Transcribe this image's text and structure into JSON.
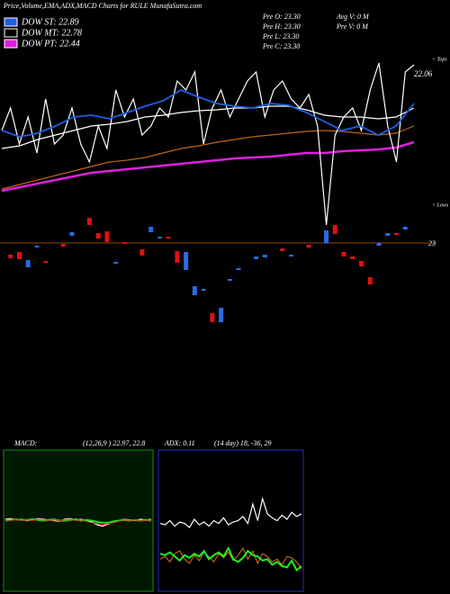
{
  "chart_data": [
    {
      "type": "line",
      "title": "Price,Volume,EMA,ADX,MACD Charts for RULE MunafaSutra.com",
      "xlim": [
        0,
        47
      ],
      "ylim": [
        20.0,
        23.6
      ],
      "series": [
        {
          "color": "#ffffff",
          "values": [
            22.15,
            22.4,
            22.0,
            22.3,
            21.9,
            22.5,
            22.0,
            22.1,
            22.4,
            22.0,
            21.8,
            22.2,
            21.95,
            22.6,
            22.3,
            22.5,
            22.1,
            22.2,
            22.4,
            22.3,
            22.7,
            22.6,
            22.8,
            22.0,
            22.4,
            22.6,
            22.3,
            22.5,
            22.7,
            22.8,
            22.3,
            22.6,
            22.7,
            22.5,
            22.4,
            22.55,
            22.2,
            21.1,
            22.1,
            22.3,
            22.4,
            22.15,
            22.6,
            22.9,
            22.2,
            21.8,
            22.8,
            22.88
          ]
        },
        {
          "name": "DOW ST: 22.89",
          "color": "#1e5fe0",
          "values": [
            22.15,
            22.08,
            22.12,
            22.2,
            22.3,
            22.32,
            22.28,
            22.35,
            22.42,
            22.48,
            22.6,
            22.52,
            22.45,
            22.42,
            22.4,
            22.45,
            22.43,
            22.35,
            22.25,
            22.15,
            22.2,
            22.1,
            22.2,
            22.45
          ]
        },
        {
          "name": "DOW MT: 22.78",
          "color": "#ffffff",
          "values": [
            21.95,
            21.98,
            22.05,
            22.1,
            22.15,
            22.2,
            22.22,
            22.25,
            22.3,
            22.32,
            22.35,
            22.37,
            22.38,
            22.4,
            22.4,
            22.42,
            22.42,
            22.38,
            22.32,
            22.3,
            22.3,
            22.28,
            22.3,
            22.4
          ]
        },
        {
          "color": "#b8651e",
          "values": [
            21.5,
            21.55,
            21.6,
            21.65,
            21.7,
            21.75,
            21.8,
            21.82,
            21.85,
            21.9,
            21.95,
            21.98,
            22.02,
            22.05,
            22.08,
            22.1,
            22.12,
            22.14,
            22.15,
            22.14,
            22.12,
            22.1,
            22.12,
            22.2
          ]
        },
        {
          "name": "DOW PT: 22.44",
          "color": "#e01ee0",
          "values": [
            21.48,
            21.52,
            21.56,
            21.6,
            21.64,
            21.68,
            21.7,
            21.72,
            21.74,
            21.76,
            21.78,
            21.8,
            21.82,
            21.84,
            21.85,
            21.86,
            21.88,
            21.9,
            21.9,
            21.92,
            21.93,
            21.94,
            21.96,
            22.02
          ]
        }
      ],
      "candles": {
        "x": [
          1,
          2,
          3,
          4,
          5,
          7,
          8,
          10,
          11,
          12,
          13,
          14,
          16,
          17,
          18,
          19,
          20,
          21,
          22,
          23,
          24,
          25,
          26,
          27,
          29,
          30,
          32,
          33,
          35,
          37,
          38,
          39,
          40,
          41,
          42,
          43,
          44,
          45,
          46
        ],
        "open": [
          20.77,
          20.8,
          20.71,
          20.87,
          20.7,
          20.89,
          21.02,
          21.18,
          21.01,
          21.03,
          20.69,
          20.91,
          20.83,
          21.08,
          20.97,
          20.97,
          20.81,
          20.8,
          20.42,
          20.39,
          20.12,
          20.18,
          20.5,
          20.62,
          20.75,
          20.77,
          20.84,
          20.77,
          20.88,
          21.04,
          21.1,
          20.8,
          20.75,
          20.7,
          20.52,
          20.9,
          21.01,
          21.01,
          21.08
        ],
        "close": [
          20.73,
          20.72,
          20.63,
          20.85,
          20.68,
          20.86,
          20.98,
          21.1,
          20.95,
          20.91,
          20.67,
          20.89,
          20.76,
          21.02,
          20.95,
          20.95,
          20.68,
          20.6,
          20.32,
          20.37,
          20.02,
          20.02,
          20.48,
          20.6,
          20.72,
          20.74,
          20.81,
          20.75,
          20.85,
          20.9,
          21.0,
          20.75,
          20.72,
          20.64,
          20.44,
          20.87,
          20.98,
          20.99,
          21.05
        ],
        "colors": [
          "#e01010",
          "#e01010",
          "#2a6ae8",
          "#2a6ae8",
          "#e01010",
          "#e01010",
          "#2a6ae8",
          "#e01010",
          "#e01010",
          "#e01010",
          "#2a6ae8",
          "#e01010",
          "#e01010",
          "#2a6ae8",
          "#2a6ae8",
          "#e01010",
          "#e01010",
          "#2a6ae8",
          "#2a6ae8",
          "#2a6ae8",
          "#e01010",
          "#2a6ae8",
          "#2a6ae8",
          "#2a6ae8",
          "#2a6ae8",
          "#2a6ae8",
          "#e01010",
          "#2a6ae8",
          "#e01010",
          "#2a6ae8",
          "#e01010",
          "#e01010",
          "#e01010",
          "#e01010",
          "#e01010",
          "#2a6ae8",
          "#2a6ae8",
          "#e01010",
          "#2a6ae8"
        ]
      },
      "annotations": [
        "Pre  O: 23.30",
        "Pre  H: 23.30",
        "Pre  L: 23.30",
        "Pre  C: 23.30",
        "Avg V: 0  M",
        "Pre  V: 0  M",
        "22.06",
        "23",
        "< Tops",
        "< Lows"
      ]
    },
    {
      "type": "line",
      "title": "MACD:",
      "subtitle": "(12,26,9 ) 22.97, 22.8",
      "xlim": [
        0,
        27
      ],
      "ylim": [
        -1,
        1
      ],
      "series": [
        {
          "color": "#ffffff",
          "values": [
            0.02,
            0.03,
            0.01,
            0.02,
            0.0,
            0.01,
            0.03,
            0.02,
            0.01,
            0.0,
            -0.01,
            0.02,
            0.03,
            0.01,
            0.02,
            0.0,
            -0.02,
            -0.06,
            -0.08,
            -0.05,
            -0.02,
            0.0,
            0.02,
            0.01,
            0.0,
            0.02,
            0.01,
            0.02
          ]
        },
        {
          "color": "#20e020",
          "values": [
            0.0,
            0.01,
            0.02,
            0.01,
            0.01,
            0.02,
            0.01,
            0.0,
            0.01,
            0.02,
            0.0,
            0.0,
            0.01,
            0.02,
            0.0,
            0.01,
            0.0,
            -0.02,
            -0.03,
            -0.03,
            -0.01,
            0.0,
            0.01,
            0.0,
            0.01,
            0.0,
            0.01,
            0.0
          ]
        },
        {
          "color": "#e02020",
          "values": [
            0.01,
            0.0,
            0.02,
            0.0,
            0.01,
            0.0,
            0.02,
            0.01,
            0.0,
            0.01,
            0.0,
            0.01,
            0.02,
            0.0,
            0.01,
            -0.01,
            -0.03,
            -0.04,
            -0.06,
            -0.04,
            -0.03,
            -0.01,
            0.01,
            0.0,
            0.01,
            0.0,
            0.0,
            0.01
          ]
        }
      ]
    },
    {
      "type": "line",
      "title": "ADX: 0.11",
      "subtitle": "(14 day) 18, -36, 29",
      "xlim": [
        0,
        29
      ],
      "ylim": [
        0,
        100
      ],
      "series": [
        {
          "color": "#ffffff",
          "values": [
            48,
            47,
            50,
            46,
            49,
            48,
            45,
            51,
            47,
            49,
            46,
            50,
            48,
            52,
            47,
            49,
            50,
            53,
            48,
            62,
            50,
            66,
            55,
            52,
            50,
            54,
            51,
            56,
            53,
            55
          ]
        },
        {
          "color": "#e07020",
          "values": [
            22,
            24,
            20,
            26,
            28,
            22,
            19,
            25,
            21,
            27,
            24,
            20,
            26,
            23,
            27,
            21,
            25,
            30,
            22,
            28,
            19,
            26,
            24,
            20,
            22,
            18,
            24,
            23,
            20,
            15
          ]
        },
        {
          "color": "#20f020",
          "values": [
            26,
            25,
            27,
            24,
            21,
            25,
            23,
            26,
            24,
            28,
            22,
            25,
            27,
            24,
            30,
            22,
            20,
            23,
            28,
            25,
            24,
            21,
            22,
            18,
            20,
            17,
            16,
            21,
            14,
            17
          ]
        }
      ]
    }
  ]
}
